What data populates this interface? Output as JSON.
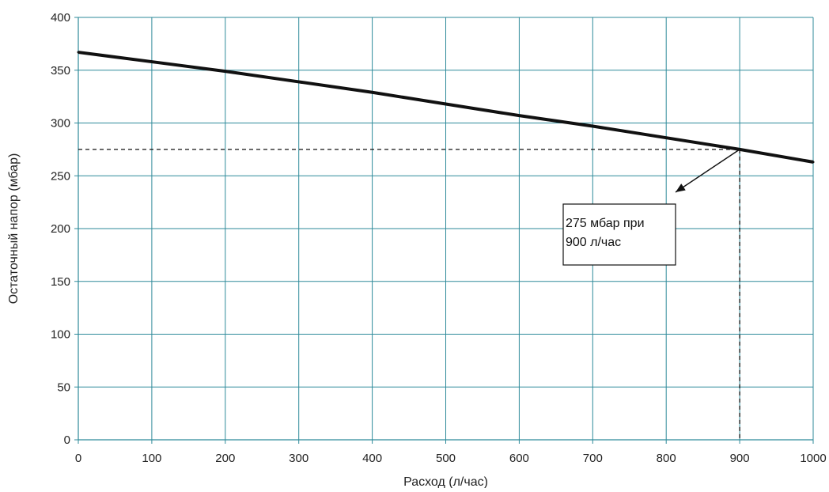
{
  "chart_data": {
    "type": "line",
    "title": "",
    "xlabel": "Расход (л/час)",
    "ylabel": "Остаточный напор (мбар)",
    "xlim": [
      0,
      1000
    ],
    "ylim": [
      0,
      400
    ],
    "x_ticks": [
      0,
      100,
      200,
      300,
      400,
      500,
      600,
      700,
      800,
      900,
      1000
    ],
    "y_ticks": [
      0,
      50,
      100,
      150,
      200,
      250,
      300,
      350,
      400
    ],
    "grid": true,
    "grid_color": "#2e8a9a",
    "line_color": "#111111",
    "series": [
      {
        "x": [
          0,
          100,
          200,
          300,
          400,
          500,
          600,
          700,
          800,
          900,
          1000
        ],
        "y": [
          367,
          358,
          349,
          339,
          329,
          318,
          307,
          297,
          286,
          275,
          263
        ]
      }
    ],
    "reference": {
      "x": 900,
      "y": 275
    },
    "annotation": {
      "lines": [
        "275 мбар при",
        "900 л/час"
      ]
    }
  }
}
